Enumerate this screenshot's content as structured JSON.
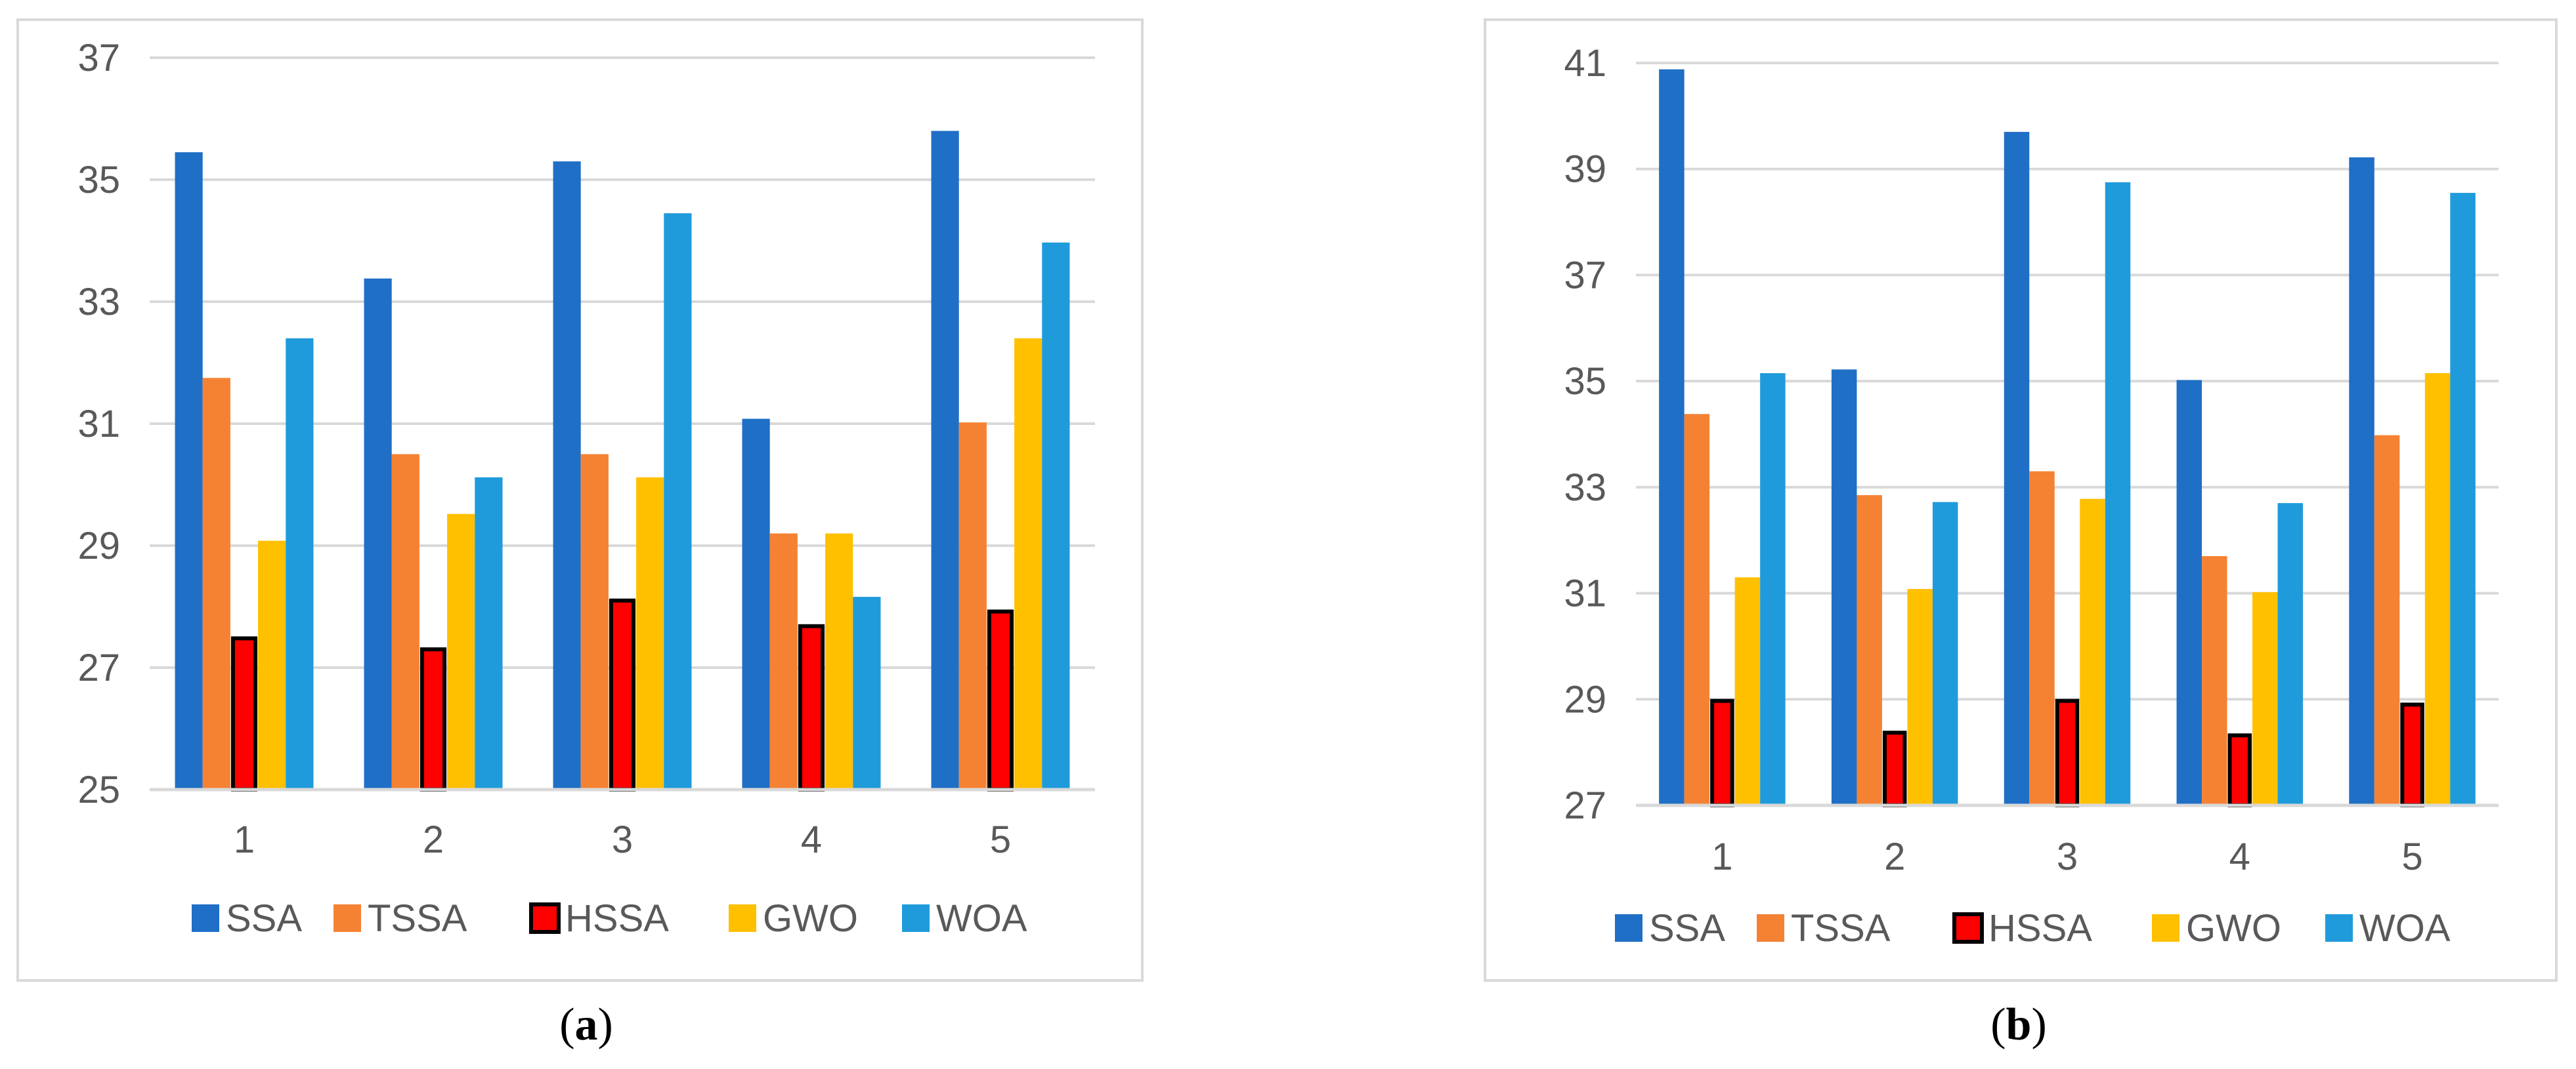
{
  "chart_data": [
    {
      "type": "bar",
      "caption_letter": "a",
      "categories": [
        "1",
        "2",
        "3",
        "4",
        "5"
      ],
      "ylim": [
        25,
        37
      ],
      "yticks": [
        "25",
        "27",
        "29",
        "31",
        "33",
        "35",
        "37"
      ],
      "series": [
        {
          "name": "SSA",
          "color": "#1F6FC6",
          "values": [
            35.45,
            33.38,
            35.3,
            31.08,
            35.8
          ]
        },
        {
          "name": "TSSA",
          "color": "#F58233",
          "values": [
            31.75,
            30.5,
            30.5,
            29.2,
            31.02
          ]
        },
        {
          "name": "HSSA",
          "color": "#FF0000",
          "outline": "#000000",
          "values": [
            27.48,
            27.3,
            28.1,
            27.68,
            27.92
          ]
        },
        {
          "name": "GWO",
          "color": "#FFC000",
          "values": [
            29.08,
            29.52,
            30.12,
            29.2,
            32.4
          ]
        },
        {
          "name": "WOA",
          "color": "#1F9BDB",
          "values": [
            32.4,
            30.12,
            34.45,
            28.16,
            33.97
          ]
        }
      ]
    },
    {
      "type": "bar",
      "caption_letter": "b",
      "categories": [
        "1",
        "2",
        "3",
        "4",
        "5"
      ],
      "ylim": [
        27,
        41
      ],
      "yticks": [
        "27",
        "29",
        "31",
        "33",
        "35",
        "37",
        "39",
        "41"
      ],
      "series": [
        {
          "name": "SSA",
          "color": "#1F6FC6",
          "values": [
            40.88,
            35.22,
            39.7,
            35.02,
            39.22
          ]
        },
        {
          "name": "TSSA",
          "color": "#F58233",
          "values": [
            34.38,
            32.85,
            33.3,
            31.7,
            33.98
          ]
        },
        {
          "name": "HSSA",
          "color": "#FF0000",
          "outline": "#000000",
          "values": [
            28.97,
            28.37,
            28.97,
            28.32,
            28.9
          ]
        },
        {
          "name": "GWO",
          "color": "#FFC000",
          "values": [
            31.3,
            31.08,
            32.78,
            31.02,
            35.15
          ]
        },
        {
          "name": "WOA",
          "color": "#1F9BDB",
          "values": [
            35.15,
            32.72,
            38.75,
            32.7,
            38.55
          ]
        }
      ]
    }
  ]
}
